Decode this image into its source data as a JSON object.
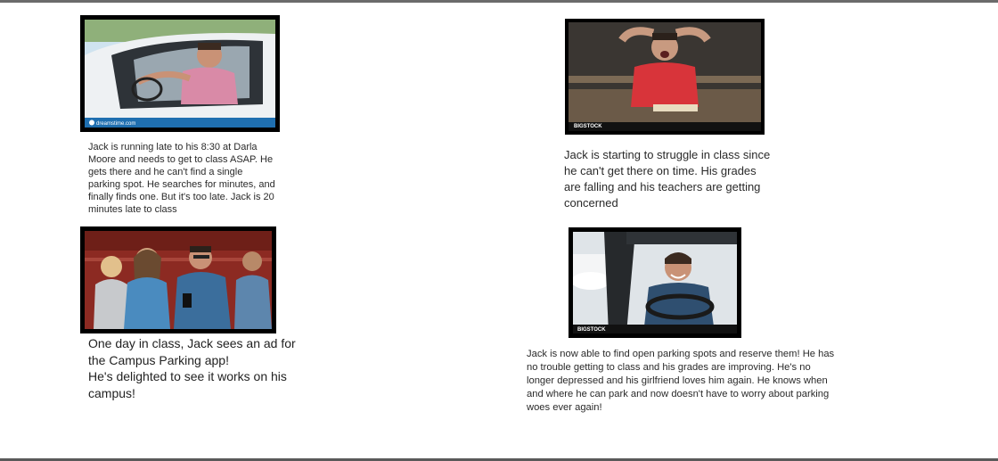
{
  "panels": [
    {
      "image_desc": "man driving car looking frustrated",
      "watermark": "dreamstime.com",
      "caption": "Jack is running late to his 8:30 at Darla\nMoore and needs to get to class ASAP. He\ngets there and he can't find a single\nparking spot. He searches for minutes, and\nfinally finds one. But it's too late. Jack is 20\nminutes late to class"
    },
    {
      "image_desc": "stressed student holding head at desk",
      "watermark": "BIGSTOCK",
      "caption": "Jack is starting to struggle in class since\nhe can't get there on time. His grades\nare falling and his teachers are getting\nconcerned"
    },
    {
      "image_desc": "students in lecture hall looking at phones",
      "caption": "One day in class, Jack sees an ad for\nthe Campus Parking app!\nHe's delighted to see it works on his\ncampus!"
    },
    {
      "image_desc": "smiling man driving car",
      "watermark": "BIGSTOCK",
      "caption": "Jack is now able to find open parking spots and reserve them! He has\nno trouble getting to class and his grades are improving. He's no\nlonger depressed and his girlfriend loves him again. He knows when\nand where he can park and now doesn't have to worry about parking\nwoes ever again!"
    }
  ],
  "colors": {
    "frame": "#000000",
    "sky": "#cfe3ef",
    "car_white": "#eef1f3",
    "shirt_pink": "#d98aa7",
    "shirt_red": "#d8343a",
    "jacket_blue": "#3b6e9c",
    "hall_red": "#8c2a22"
  }
}
